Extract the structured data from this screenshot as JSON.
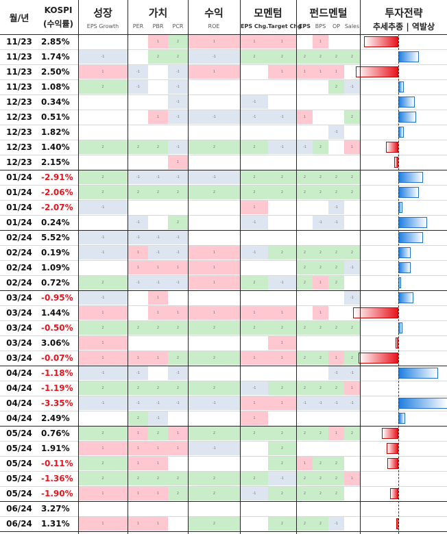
{
  "header": {
    "date": "월/년",
    "kospi": "KOSPI",
    "kospi_sub": "(수익률)",
    "growth": "성장",
    "growth_sub": "EPS Growth",
    "value": "가치",
    "value_subs": [
      "PER",
      "PBR",
      "PCR"
    ],
    "profit": "수익",
    "profit_sub": "ROE",
    "momentum": "모멘텀",
    "momentum_subs": [
      "EPS Chg.",
      "Target Chg"
    ],
    "fundamental": "펀드멘털",
    "fundamental_subs": [
      "EPS",
      "BPS",
      "OP",
      "Sales"
    ],
    "strategy": "투자전략",
    "strategy_sub": "추세추종 | 역발상"
  },
  "colors": {
    "green": "#c9ecc9",
    "red": "#ffc8d0",
    "blue": "#dde5f0",
    "white": "#ffffff",
    "neg_return": "#e8141e",
    "pos_return": "#111111"
  },
  "chart_data": {
    "type": "table",
    "columns": [
      "월/년",
      "KOSPI (수익률)",
      "EPS Growth",
      "PER",
      "PBR",
      "PCR",
      "ROE",
      "EPS Chg.",
      "Target Chg",
      "EPS",
      "BPS",
      "OP",
      "Sales",
      "투자전략"
    ],
    "rows": [
      {
        "date": "11/23",
        "ret": "2.85%",
        "neg": false,
        "g": "w",
        "v": [
          "w",
          "r",
          "g"
        ],
        "p": "r",
        "m": [
          "r",
          "r"
        ],
        "f": [
          "w",
          "r",
          "w",
          "w"
        ],
        "bar": -0.42
      },
      {
        "date": "11/23",
        "ret": "1.74%",
        "neg": false,
        "g": "b",
        "v": [
          "w",
          "g",
          "g"
        ],
        "p": "b",
        "m": [
          "g",
          "g"
        ],
        "f": [
          "g",
          "g",
          "g",
          "g"
        ],
        "bar": 0.25
      },
      {
        "date": "11/23",
        "ret": "2.50%",
        "neg": false,
        "g": "r",
        "v": [
          "b",
          "w",
          "b"
        ],
        "p": "r",
        "m": [
          "w",
          "r"
        ],
        "f": [
          "r",
          "r",
          "r",
          "w"
        ],
        "bar": -0.52
      },
      {
        "date": "11/23",
        "ret": "1.08%",
        "neg": false,
        "g": "g",
        "v": [
          "b",
          "w",
          "b"
        ],
        "p": "w",
        "m": [
          "w",
          "w"
        ],
        "f": [
          "w",
          "w",
          "g",
          "b"
        ],
        "bar": 0.07
      },
      {
        "date": "12/23",
        "ret": "0.34%",
        "neg": false,
        "g": "w",
        "v": [
          "w",
          "w",
          "b"
        ],
        "p": "w",
        "m": [
          "b",
          "w"
        ],
        "f": [
          "w",
          "w",
          "w",
          "w"
        ],
        "bar": 0.2
      },
      {
        "date": "12/23",
        "ret": "0.51%",
        "neg": false,
        "g": "w",
        "v": [
          "w",
          "r",
          "b"
        ],
        "p": "b",
        "m": [
          "b",
          "b"
        ],
        "f": [
          "r",
          "w",
          "w",
          "g"
        ],
        "bar": 0.22
      },
      {
        "date": "12/23",
        "ret": "1.82%",
        "neg": false,
        "g": "w",
        "v": [
          "w",
          "w",
          "w"
        ],
        "p": "w",
        "m": [
          "w",
          "w"
        ],
        "f": [
          "w",
          "w",
          "b",
          "w"
        ],
        "bar": 0.07
      },
      {
        "date": "12/23",
        "ret": "1.40%",
        "neg": false,
        "g": "g",
        "v": [
          "g",
          "g",
          "b"
        ],
        "p": "g",
        "m": [
          "g",
          "b"
        ],
        "f": [
          "b",
          "g",
          "w",
          "r"
        ],
        "bar": -0.15
      },
      {
        "date": "12/23",
        "ret": "2.15%",
        "neg": false,
        "g": "w",
        "v": [
          "w",
          "w",
          "r"
        ],
        "p": "w",
        "m": [
          "w",
          "w"
        ],
        "f": [
          "w",
          "w",
          "w",
          "w"
        ],
        "bar": -0.05
      },
      {
        "date": "01/24",
        "ret": "-2.91%",
        "neg": true,
        "g": "g",
        "v": [
          "b",
          "b",
          "b"
        ],
        "p": "b",
        "m": [
          "g",
          "g"
        ],
        "f": [
          "g",
          "g",
          "g",
          "g"
        ],
        "bar": 0.3
      },
      {
        "date": "01/24",
        "ret": "-2.06%",
        "neg": true,
        "g": "g",
        "v": [
          "g",
          "g",
          "g"
        ],
        "p": "g",
        "m": [
          "g",
          "g"
        ],
        "f": [
          "g",
          "g",
          "g",
          "g"
        ],
        "bar": 0.25
      },
      {
        "date": "01/24",
        "ret": "-2.07%",
        "neg": true,
        "g": "b",
        "v": [
          "w",
          "w",
          "w"
        ],
        "p": "w",
        "m": [
          "r",
          "w"
        ],
        "f": [
          "w",
          "w",
          "b",
          "w"
        ],
        "bar": 0.05
      },
      {
        "date": "01/24",
        "ret": "0.24%",
        "neg": false,
        "g": "w",
        "v": [
          "b",
          "w",
          "g"
        ],
        "p": "w",
        "m": [
          "b",
          "w"
        ],
        "f": [
          "w",
          "b",
          "b",
          "w"
        ],
        "bar": 0.35
      },
      {
        "date": "02/24",
        "ret": "5.52%",
        "neg": false,
        "g": "b",
        "v": [
          "b",
          "b",
          "b"
        ],
        "p": "w",
        "m": [
          "w",
          "w"
        ],
        "f": [
          "w",
          "w",
          "w",
          "w"
        ],
        "bar": 0.3
      },
      {
        "date": "02/24",
        "ret": "0.19%",
        "neg": false,
        "g": "b",
        "v": [
          "r",
          "b",
          "b"
        ],
        "p": "r",
        "m": [
          "b",
          "g"
        ],
        "f": [
          "g",
          "g",
          "g",
          "g"
        ],
        "bar": 0.15
      },
      {
        "date": "02/24",
        "ret": "1.09%",
        "neg": false,
        "g": "w",
        "v": [
          "r",
          "r",
          "r"
        ],
        "p": "r",
        "m": [
          "w",
          "w"
        ],
        "f": [
          "g",
          "g",
          "g",
          "b"
        ],
        "bar": 0.15
      },
      {
        "date": "02/24",
        "ret": "0.72%",
        "neg": false,
        "g": "g",
        "v": [
          "b",
          "b",
          "b"
        ],
        "p": "r",
        "m": [
          "g",
          "b"
        ],
        "f": [
          "g",
          "r",
          "g",
          "w"
        ],
        "bar": 0.03
      },
      {
        "date": "03/24",
        "ret": "-0.95%",
        "neg": true,
        "g": "b",
        "v": [
          "w",
          "r",
          "w"
        ],
        "p": "w",
        "m": [
          "w",
          "w"
        ],
        "f": [
          "w",
          "w",
          "w",
          "b"
        ],
        "bar": 0.18
      },
      {
        "date": "03/24",
        "ret": "1.44%",
        "neg": false,
        "g": "r",
        "v": [
          "w",
          "r",
          "r"
        ],
        "p": "r",
        "m": [
          "r",
          "r"
        ],
        "f": [
          "w",
          "r",
          "w",
          "w"
        ],
        "bar": -0.55
      },
      {
        "date": "03/24",
        "ret": "-0.50%",
        "neg": true,
        "g": "g",
        "v": [
          "g",
          "g",
          "g"
        ],
        "p": "g",
        "m": [
          "g",
          "g"
        ],
        "f": [
          "g",
          "g",
          "g",
          "g"
        ],
        "bar": 0.05
      },
      {
        "date": "03/24",
        "ret": "3.06%",
        "neg": false,
        "g": "r",
        "v": [
          "w",
          "w",
          "w"
        ],
        "p": "w",
        "m": [
          "w",
          "r"
        ],
        "f": [
          "w",
          "w",
          "w",
          "w"
        ],
        "bar": -0.03
      },
      {
        "date": "03/24",
        "ret": "-0.07%",
        "neg": true,
        "g": "r",
        "v": [
          "r",
          "r",
          "g"
        ],
        "p": "g",
        "m": [
          "r",
          "r"
        ],
        "f": [
          "g",
          "g",
          "r",
          "g"
        ],
        "bar": -0.48
      },
      {
        "date": "04/24",
        "ret": "-1.18%",
        "neg": true,
        "g": "b",
        "v": [
          "b",
          "w",
          "b"
        ],
        "p": "w",
        "m": [
          "w",
          "w"
        ],
        "f": [
          "w",
          "w",
          "b",
          "b"
        ],
        "bar": 0.48
      },
      {
        "date": "04/24",
        "ret": "-1.19%",
        "neg": true,
        "g": "g",
        "v": [
          "g",
          "g",
          "g"
        ],
        "p": "g",
        "m": [
          "b",
          "g"
        ],
        "f": [
          "g",
          "g",
          "g",
          "r"
        ],
        "bar": 0.0
      },
      {
        "date": "04/24",
        "ret": "-3.35%",
        "neg": true,
        "g": "b",
        "v": [
          "b",
          "b",
          "b"
        ],
        "p": "b",
        "m": [
          "r",
          "r"
        ],
        "f": [
          "b",
          "b",
          "b",
          "b"
        ],
        "bar": 0.6
      },
      {
        "date": "04/24",
        "ret": "2.49%",
        "neg": false,
        "g": "w",
        "v": [
          "g",
          "b",
          "w"
        ],
        "p": "w",
        "m": [
          "r",
          "w"
        ],
        "f": [
          "w",
          "w",
          "w",
          "w"
        ],
        "bar": 0.08
      },
      {
        "date": "05/24",
        "ret": "0.76%",
        "neg": false,
        "g": "g",
        "v": [
          "r",
          "g",
          "r"
        ],
        "p": "g",
        "m": [
          "g",
          "g"
        ],
        "f": [
          "g",
          "g",
          "r",
          "g"
        ],
        "bar": -0.2
      },
      {
        "date": "05/24",
        "ret": "1.91%",
        "neg": false,
        "g": "r",
        "v": [
          "r",
          "r",
          "r"
        ],
        "p": "b",
        "m": [
          "w",
          "g"
        ],
        "f": [
          "w",
          "w",
          "w",
          "w"
        ],
        "bar": -0.14
      },
      {
        "date": "05/24",
        "ret": "-0.11%",
        "neg": true,
        "g": "g",
        "v": [
          "r",
          "r",
          "w"
        ],
        "p": "w",
        "m": [
          "w",
          "g"
        ],
        "f": [
          "r",
          "g",
          "g",
          "w"
        ],
        "bar": -0.13
      },
      {
        "date": "05/24",
        "ret": "-1.36%",
        "neg": true,
        "g": "g",
        "v": [
          "g",
          "g",
          "g"
        ],
        "p": "g",
        "m": [
          "g",
          "b"
        ],
        "f": [
          "g",
          "g",
          "g",
          "r"
        ],
        "bar": 0.0
      },
      {
        "date": "05/24",
        "ret": "-1.90%",
        "neg": true,
        "g": "r",
        "v": [
          "r",
          "r",
          "g"
        ],
        "p": "g",
        "m": [
          "b",
          "g"
        ],
        "f": [
          "g",
          "g",
          "g",
          "w"
        ],
        "bar": -0.1
      },
      {
        "date": "06/24",
        "ret": "3.27%",
        "neg": false,
        "g": "w",
        "v": [
          "w",
          "w",
          "w"
        ],
        "p": "w",
        "m": [
          "w",
          "w"
        ],
        "f": [
          "w",
          "w",
          "w",
          "w"
        ],
        "bar": 0.0
      },
      {
        "date": "06/24",
        "ret": "1.31%",
        "neg": false,
        "g": "r",
        "v": [
          "r",
          "r",
          "w"
        ],
        "p": "g",
        "m": [
          "w",
          "g"
        ],
        "f": [
          "g",
          "g",
          "b",
          "w"
        ],
        "bar": -0.02
      }
    ]
  }
}
